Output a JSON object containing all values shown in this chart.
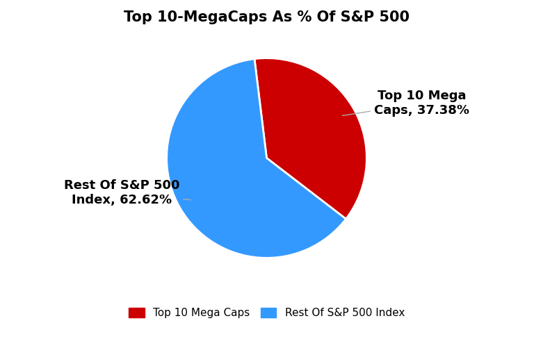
{
  "title": "Top 10-MegaCaps As % Of S&P 500",
  "slices": [
    37.38,
    62.62
  ],
  "labels": [
    "Top 10 Mega Caps",
    "Rest Of S&P 500 Index"
  ],
  "colors": [
    "#cc0000",
    "#3399ff"
  ],
  "annotation_labels": [
    "Top 10 Mega\nCaps, 37.38%",
    "Rest Of S&P 500\nIndex, 62.62%"
  ],
  "legend_labels": [
    "Top 10 Mega Caps",
    "Rest Of S&P 500 Index"
  ],
  "title_fontsize": 15,
  "annotation_fontsize": 13,
  "legend_fontsize": 11,
  "background_color": "#ffffff",
  "startangle": 97
}
